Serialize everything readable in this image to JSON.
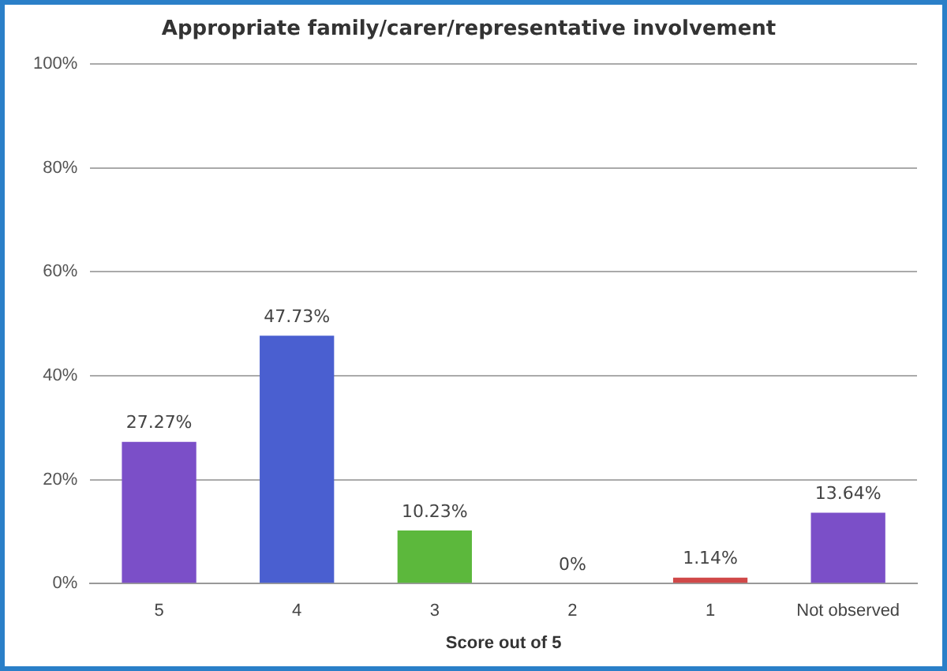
{
  "chart_data": {
    "type": "bar",
    "title": "Appropriate family/carer/representative involvement",
    "xlabel": "Score out of 5",
    "categories": [
      "5",
      "4",
      "3",
      "2",
      "1",
      "Not observed"
    ],
    "values": [
      27.27,
      47.73,
      10.23,
      0,
      1.14,
      13.64
    ],
    "value_labels": [
      "27.27%",
      "47.73%",
      "10.23%",
      "0%",
      "1.14%",
      "13.64%"
    ],
    "colors": [
      "#7b4fc8",
      "#4a5fd0",
      "#5cb83c",
      "#c8c86a",
      "#d04848",
      "#7b4fc8"
    ],
    "ylim": [
      0,
      100
    ],
    "yticks": [
      {
        "value": 0,
        "label": "0%"
      },
      {
        "value": 20,
        "label": "20%"
      },
      {
        "value": 40,
        "label": "40%"
      },
      {
        "value": 60,
        "label": "60%"
      },
      {
        "value": 80,
        "label": "80%"
      },
      {
        "value": 100,
        "label": "100%"
      }
    ],
    "grid": "y",
    "legend": false
  }
}
